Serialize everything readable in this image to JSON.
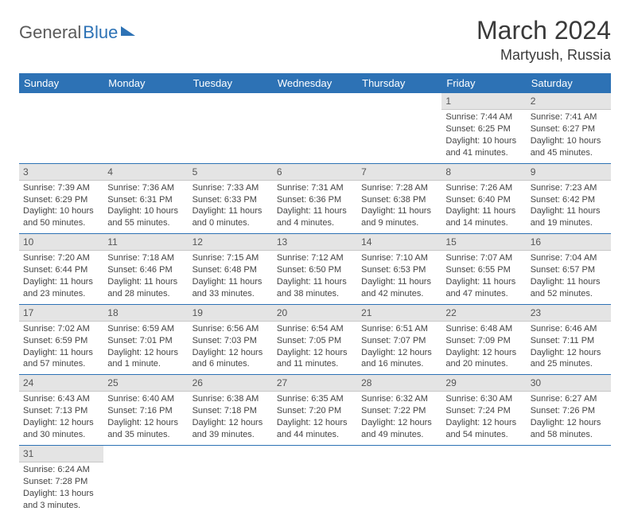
{
  "logo": {
    "general": "General",
    "blue": "Blue"
  },
  "title": "March 2024",
  "location": "Martyush, Russia",
  "colors": {
    "header_bg": "#2d72b5",
    "header_fg": "#ffffff",
    "daynum_bg": "#e4e4e4",
    "row_border": "#2d72b5",
    "text": "#444444"
  },
  "weekdays": [
    "Sunday",
    "Monday",
    "Tuesday",
    "Wednesday",
    "Thursday",
    "Friday",
    "Saturday"
  ],
  "weeks": [
    [
      null,
      null,
      null,
      null,
      null,
      {
        "d": "1",
        "sr": "Sunrise: 7:44 AM",
        "ss": "Sunset: 6:25 PM",
        "dl": "Daylight: 10 hours and 41 minutes."
      },
      {
        "d": "2",
        "sr": "Sunrise: 7:41 AM",
        "ss": "Sunset: 6:27 PM",
        "dl": "Daylight: 10 hours and 45 minutes."
      }
    ],
    [
      {
        "d": "3",
        "sr": "Sunrise: 7:39 AM",
        "ss": "Sunset: 6:29 PM",
        "dl": "Daylight: 10 hours and 50 minutes."
      },
      {
        "d": "4",
        "sr": "Sunrise: 7:36 AM",
        "ss": "Sunset: 6:31 PM",
        "dl": "Daylight: 10 hours and 55 minutes."
      },
      {
        "d": "5",
        "sr": "Sunrise: 7:33 AM",
        "ss": "Sunset: 6:33 PM",
        "dl": "Daylight: 11 hours and 0 minutes."
      },
      {
        "d": "6",
        "sr": "Sunrise: 7:31 AM",
        "ss": "Sunset: 6:36 PM",
        "dl": "Daylight: 11 hours and 4 minutes."
      },
      {
        "d": "7",
        "sr": "Sunrise: 7:28 AM",
        "ss": "Sunset: 6:38 PM",
        "dl": "Daylight: 11 hours and 9 minutes."
      },
      {
        "d": "8",
        "sr": "Sunrise: 7:26 AM",
        "ss": "Sunset: 6:40 PM",
        "dl": "Daylight: 11 hours and 14 minutes."
      },
      {
        "d": "9",
        "sr": "Sunrise: 7:23 AM",
        "ss": "Sunset: 6:42 PM",
        "dl": "Daylight: 11 hours and 19 minutes."
      }
    ],
    [
      {
        "d": "10",
        "sr": "Sunrise: 7:20 AM",
        "ss": "Sunset: 6:44 PM",
        "dl": "Daylight: 11 hours and 23 minutes."
      },
      {
        "d": "11",
        "sr": "Sunrise: 7:18 AM",
        "ss": "Sunset: 6:46 PM",
        "dl": "Daylight: 11 hours and 28 minutes."
      },
      {
        "d": "12",
        "sr": "Sunrise: 7:15 AM",
        "ss": "Sunset: 6:48 PM",
        "dl": "Daylight: 11 hours and 33 minutes."
      },
      {
        "d": "13",
        "sr": "Sunrise: 7:12 AM",
        "ss": "Sunset: 6:50 PM",
        "dl": "Daylight: 11 hours and 38 minutes."
      },
      {
        "d": "14",
        "sr": "Sunrise: 7:10 AM",
        "ss": "Sunset: 6:53 PM",
        "dl": "Daylight: 11 hours and 42 minutes."
      },
      {
        "d": "15",
        "sr": "Sunrise: 7:07 AM",
        "ss": "Sunset: 6:55 PM",
        "dl": "Daylight: 11 hours and 47 minutes."
      },
      {
        "d": "16",
        "sr": "Sunrise: 7:04 AM",
        "ss": "Sunset: 6:57 PM",
        "dl": "Daylight: 11 hours and 52 minutes."
      }
    ],
    [
      {
        "d": "17",
        "sr": "Sunrise: 7:02 AM",
        "ss": "Sunset: 6:59 PM",
        "dl": "Daylight: 11 hours and 57 minutes."
      },
      {
        "d": "18",
        "sr": "Sunrise: 6:59 AM",
        "ss": "Sunset: 7:01 PM",
        "dl": "Daylight: 12 hours and 1 minute."
      },
      {
        "d": "19",
        "sr": "Sunrise: 6:56 AM",
        "ss": "Sunset: 7:03 PM",
        "dl": "Daylight: 12 hours and 6 minutes."
      },
      {
        "d": "20",
        "sr": "Sunrise: 6:54 AM",
        "ss": "Sunset: 7:05 PM",
        "dl": "Daylight: 12 hours and 11 minutes."
      },
      {
        "d": "21",
        "sr": "Sunrise: 6:51 AM",
        "ss": "Sunset: 7:07 PM",
        "dl": "Daylight: 12 hours and 16 minutes."
      },
      {
        "d": "22",
        "sr": "Sunrise: 6:48 AM",
        "ss": "Sunset: 7:09 PM",
        "dl": "Daylight: 12 hours and 20 minutes."
      },
      {
        "d": "23",
        "sr": "Sunrise: 6:46 AM",
        "ss": "Sunset: 7:11 PM",
        "dl": "Daylight: 12 hours and 25 minutes."
      }
    ],
    [
      {
        "d": "24",
        "sr": "Sunrise: 6:43 AM",
        "ss": "Sunset: 7:13 PM",
        "dl": "Daylight: 12 hours and 30 minutes."
      },
      {
        "d": "25",
        "sr": "Sunrise: 6:40 AM",
        "ss": "Sunset: 7:16 PM",
        "dl": "Daylight: 12 hours and 35 minutes."
      },
      {
        "d": "26",
        "sr": "Sunrise: 6:38 AM",
        "ss": "Sunset: 7:18 PM",
        "dl": "Daylight: 12 hours and 39 minutes."
      },
      {
        "d": "27",
        "sr": "Sunrise: 6:35 AM",
        "ss": "Sunset: 7:20 PM",
        "dl": "Daylight: 12 hours and 44 minutes."
      },
      {
        "d": "28",
        "sr": "Sunrise: 6:32 AM",
        "ss": "Sunset: 7:22 PM",
        "dl": "Daylight: 12 hours and 49 minutes."
      },
      {
        "d": "29",
        "sr": "Sunrise: 6:30 AM",
        "ss": "Sunset: 7:24 PM",
        "dl": "Daylight: 12 hours and 54 minutes."
      },
      {
        "d": "30",
        "sr": "Sunrise: 6:27 AM",
        "ss": "Sunset: 7:26 PM",
        "dl": "Daylight: 12 hours and 58 minutes."
      }
    ],
    [
      {
        "d": "31",
        "sr": "Sunrise: 6:24 AM",
        "ss": "Sunset: 7:28 PM",
        "dl": "Daylight: 13 hours and 3 minutes."
      },
      null,
      null,
      null,
      null,
      null,
      null
    ]
  ]
}
